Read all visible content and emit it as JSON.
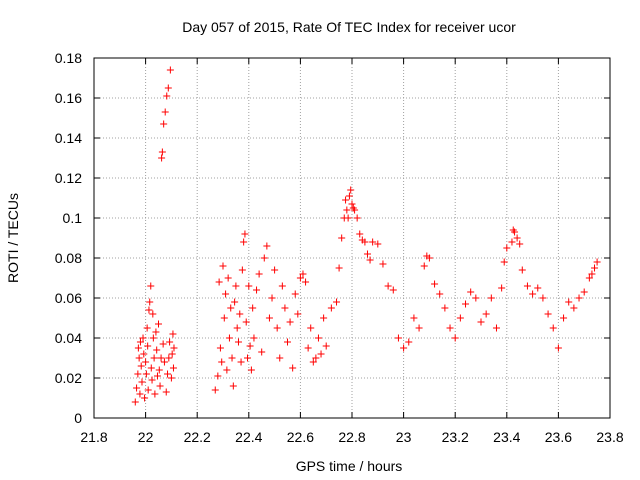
{
  "chart_data": {
    "type": "scatter",
    "title": "Day 057 of 2015, Rate Of TEC Index for receiver ucor",
    "xlabel": "GPS time / hours",
    "ylabel": "ROTI / TECUs",
    "xlim": [
      21.8,
      23.8
    ],
    "ylim": [
      0,
      0.18
    ],
    "x_ticks": [
      21.8,
      22,
      22.2,
      22.4,
      22.6,
      22.8,
      23,
      23.2,
      23.4,
      23.6,
      23.8
    ],
    "x_tick_labels": [
      "21.8",
      "22",
      "22.2",
      "22.4",
      "22.6",
      "22.8",
      "23",
      "23.2",
      "23.4",
      "23.6",
      "23.8"
    ],
    "y_ticks": [
      0,
      0.02,
      0.04,
      0.06,
      0.08,
      0.1,
      0.12,
      0.14,
      0.16,
      0.18
    ],
    "y_tick_labels": [
      "0",
      "0.02",
      "0.04",
      "0.06",
      "0.08",
      "0.1",
      "0.12",
      "0.14",
      "0.16",
      "0.18"
    ],
    "grid": true,
    "marker": "+",
    "color": "#ff0000",
    "series": [
      {
        "name": "ROTI",
        "points": [
          [
            21.96,
            0.008
          ],
          [
            21.965,
            0.015
          ],
          [
            21.97,
            0.022
          ],
          [
            21.972,
            0.035
          ],
          [
            21.975,
            0.03
          ],
          [
            21.978,
            0.012
          ],
          [
            21.98,
            0.038
          ],
          [
            21.983,
            0.026
          ],
          [
            21.986,
            0.018
          ],
          [
            21.99,
            0.04
          ],
          [
            21.993,
            0.032
          ],
          [
            21.996,
            0.01
          ],
          [
            22.0,
            0.028
          ],
          [
            22.003,
            0.022
          ],
          [
            22.006,
            0.045
          ],
          [
            22.008,
            0.036
          ],
          [
            22.01,
            0.014
          ],
          [
            22.013,
            0.054
          ],
          [
            22.016,
            0.058
          ],
          [
            22.02,
            0.066
          ],
          [
            22.022,
            0.025
          ],
          [
            22.025,
            0.019
          ],
          [
            22.028,
            0.052
          ],
          [
            22.03,
            0.04
          ],
          [
            22.033,
            0.03
          ],
          [
            22.036,
            0.012
          ],
          [
            22.04,
            0.043
          ],
          [
            22.043,
            0.034
          ],
          [
            22.046,
            0.021
          ],
          [
            22.05,
            0.047
          ],
          [
            22.053,
            0.024
          ],
          [
            22.056,
            0.016
          ],
          [
            22.06,
            0.03
          ],
          [
            22.062,
            0.13
          ],
          [
            22.065,
            0.133
          ],
          [
            22.068,
            0.037
          ],
          [
            22.07,
            0.147
          ],
          [
            22.073,
            0.028
          ],
          [
            22.076,
            0.153
          ],
          [
            22.08,
            0.013
          ],
          [
            22.082,
            0.161
          ],
          [
            22.085,
            0.022
          ],
          [
            22.088,
            0.165
          ],
          [
            22.09,
            0.03
          ],
          [
            22.093,
            0.038
          ],
          [
            22.096,
            0.174
          ],
          [
            22.1,
            0.02
          ],
          [
            22.103,
            0.032
          ],
          [
            22.106,
            0.042
          ],
          [
            22.108,
            0.025
          ],
          [
            22.11,
            0.035
          ],
          [
            22.27,
            0.014
          ],
          [
            22.28,
            0.021
          ],
          [
            22.285,
            0.068
          ],
          [
            22.29,
            0.035
          ],
          [
            22.295,
            0.028
          ],
          [
            22.3,
            0.076
          ],
          [
            22.305,
            0.05
          ],
          [
            22.31,
            0.062
          ],
          [
            22.315,
            0.024
          ],
          [
            22.32,
            0.07
          ],
          [
            22.325,
            0.04
          ],
          [
            22.33,
            0.055
          ],
          [
            22.335,
            0.03
          ],
          [
            22.34,
            0.016
          ],
          [
            22.345,
            0.058
          ],
          [
            22.35,
            0.066
          ],
          [
            22.355,
            0.045
          ],
          [
            22.36,
            0.038
          ],
          [
            22.365,
            0.052
          ],
          [
            22.37,
            0.028
          ],
          [
            22.375,
            0.074
          ],
          [
            22.38,
            0.088
          ],
          [
            22.385,
            0.092
          ],
          [
            22.39,
            0.048
          ],
          [
            22.395,
            0.03
          ],
          [
            22.4,
            0.066
          ],
          [
            22.405,
            0.036
          ],
          [
            22.41,
            0.024
          ],
          [
            22.415,
            0.055
          ],
          [
            22.42,
            0.04
          ],
          [
            22.43,
            0.064
          ],
          [
            22.44,
            0.072
          ],
          [
            22.45,
            0.033
          ],
          [
            22.46,
            0.08
          ],
          [
            22.47,
            0.086
          ],
          [
            22.48,
            0.05
          ],
          [
            22.49,
            0.06
          ],
          [
            22.5,
            0.074
          ],
          [
            22.51,
            0.045
          ],
          [
            22.52,
            0.03
          ],
          [
            22.53,
            0.066
          ],
          [
            22.54,
            0.055
          ],
          [
            22.55,
            0.038
          ],
          [
            22.56,
            0.048
          ],
          [
            22.57,
            0.025
          ],
          [
            22.58,
            0.062
          ],
          [
            22.59,
            0.052
          ],
          [
            22.6,
            0.07
          ],
          [
            22.61,
            0.072
          ],
          [
            22.62,
            0.068
          ],
          [
            22.63,
            0.035
          ],
          [
            22.64,
            0.045
          ],
          [
            22.65,
            0.028
          ],
          [
            22.66,
            0.03
          ],
          [
            22.67,
            0.04
          ],
          [
            22.68,
            0.032
          ],
          [
            22.69,
            0.05
          ],
          [
            22.7,
            0.036
          ],
          [
            22.72,
            0.055
          ],
          [
            22.74,
            0.058
          ],
          [
            22.75,
            0.075
          ],
          [
            22.76,
            0.09
          ],
          [
            22.77,
            0.1
          ],
          [
            22.775,
            0.109
          ],
          [
            22.78,
            0.104
          ],
          [
            22.785,
            0.1
          ],
          [
            22.79,
            0.111
          ],
          [
            22.795,
            0.114
          ],
          [
            22.8,
            0.107
          ],
          [
            22.805,
            0.105
          ],
          [
            22.81,
            0.104
          ],
          [
            22.82,
            0.1
          ],
          [
            22.83,
            0.092
          ],
          [
            22.84,
            0.089
          ],
          [
            22.85,
            0.088
          ],
          [
            22.86,
            0.082
          ],
          [
            22.87,
            0.079
          ],
          [
            22.88,
            0.088
          ],
          [
            22.9,
            0.087
          ],
          [
            22.92,
            0.077
          ],
          [
            22.94,
            0.066
          ],
          [
            22.96,
            0.064
          ],
          [
            22.98,
            0.04
          ],
          [
            23.0,
            0.035
          ],
          [
            23.02,
            0.038
          ],
          [
            23.04,
            0.05
          ],
          [
            23.06,
            0.045
          ],
          [
            23.08,
            0.076
          ],
          [
            23.09,
            0.081
          ],
          [
            23.1,
            0.08
          ],
          [
            23.12,
            0.067
          ],
          [
            23.14,
            0.062
          ],
          [
            23.16,
            0.055
          ],
          [
            23.18,
            0.045
          ],
          [
            23.2,
            0.04
          ],
          [
            23.22,
            0.05
          ],
          [
            23.24,
            0.057
          ],
          [
            23.26,
            0.063
          ],
          [
            23.28,
            0.06
          ],
          [
            23.3,
            0.048
          ],
          [
            23.32,
            0.052
          ],
          [
            23.34,
            0.06
          ],
          [
            23.36,
            0.045
          ],
          [
            23.38,
            0.065
          ],
          [
            23.39,
            0.078
          ],
          [
            23.4,
            0.085
          ],
          [
            23.42,
            0.088
          ],
          [
            23.425,
            0.094
          ],
          [
            23.43,
            0.093
          ],
          [
            23.44,
            0.09
          ],
          [
            23.45,
            0.087
          ],
          [
            23.46,
            0.074
          ],
          [
            23.48,
            0.066
          ],
          [
            23.5,
            0.062
          ],
          [
            23.52,
            0.065
          ],
          [
            23.54,
            0.06
          ],
          [
            23.56,
            0.052
          ],
          [
            23.58,
            0.045
          ],
          [
            23.6,
            0.035
          ],
          [
            23.62,
            0.05
          ],
          [
            23.64,
            0.058
          ],
          [
            23.66,
            0.055
          ],
          [
            23.68,
            0.06
          ],
          [
            23.7,
            0.063
          ],
          [
            23.72,
            0.07
          ],
          [
            23.73,
            0.072
          ],
          [
            23.74,
            0.075
          ],
          [
            23.75,
            0.078
          ]
        ]
      }
    ]
  }
}
